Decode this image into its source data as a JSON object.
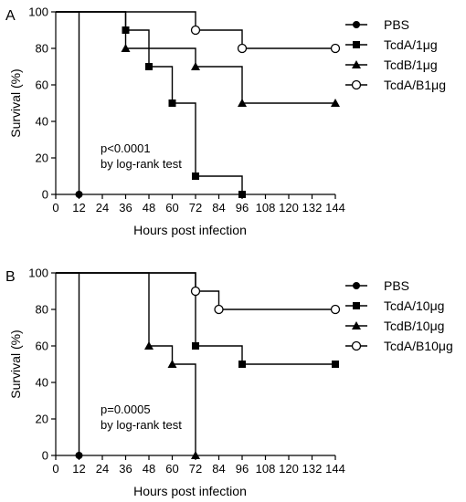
{
  "chart_data": [
    {
      "panel": "A",
      "type": "line",
      "step": true,
      "xlabel": "Hours post infection",
      "ylabel": "Survival (%)",
      "xlim": [
        0,
        144
      ],
      "ylim": [
        0,
        100
      ],
      "xticks": [
        "0",
        "12",
        "24",
        "36",
        "48",
        "60",
        "72",
        "84",
        "96",
        "108",
        "120",
        "132",
        "144"
      ],
      "yticks": [
        "0",
        "20",
        "40",
        "60",
        "80",
        "100"
      ],
      "legend_position": "right",
      "annotation": [
        "p<0.0001",
        "by log-rank test"
      ],
      "series": [
        {
          "name": "PBS",
          "marker": "circle-filled",
          "points": [
            [
              0,
              100
            ],
            [
              12,
              0
            ]
          ],
          "markers": [
            [
              12,
              0
            ]
          ]
        },
        {
          "name": "TcdA/1μg",
          "marker": "square-filled",
          "points": [
            [
              0,
              100
            ],
            [
              36,
              90
            ],
            [
              48,
              70
            ],
            [
              60,
              50
            ],
            [
              72,
              10
            ],
            [
              96,
              0
            ]
          ],
          "markers": [
            [
              36,
              90
            ],
            [
              48,
              70
            ],
            [
              60,
              50
            ],
            [
              72,
              10
            ],
            [
              96,
              0
            ]
          ]
        },
        {
          "name": "TcdB/1μg",
          "marker": "triangle-filled",
          "points": [
            [
              0,
              100
            ],
            [
              36,
              80
            ],
            [
              72,
              70
            ],
            [
              96,
              50
            ],
            [
              144,
              50
            ]
          ],
          "markers": [
            [
              36,
              80
            ],
            [
              72,
              70
            ],
            [
              96,
              50
            ],
            [
              144,
              50
            ]
          ]
        },
        {
          "name": "TcdA/B1μg",
          "marker": "circle-open",
          "points": [
            [
              0,
              100
            ],
            [
              72,
              90
            ],
            [
              96,
              80
            ],
            [
              144,
              80
            ]
          ],
          "markers": [
            [
              72,
              90
            ],
            [
              96,
              80
            ],
            [
              144,
              80
            ]
          ]
        }
      ]
    },
    {
      "panel": "B",
      "type": "line",
      "step": true,
      "xlabel": "Hours post infection",
      "ylabel": "Survival (%)",
      "xlim": [
        0,
        144
      ],
      "ylim": [
        0,
        100
      ],
      "xticks": [
        "0",
        "12",
        "24",
        "36",
        "48",
        "60",
        "72",
        "84",
        "96",
        "108",
        "120",
        "132",
        "144"
      ],
      "yticks": [
        "0",
        "20",
        "40",
        "60",
        "80",
        "100"
      ],
      "legend_position": "right",
      "annotation": [
        "p=0.0005",
        "by log-rank test"
      ],
      "series": [
        {
          "name": "PBS",
          "marker": "circle-filled",
          "points": [
            [
              0,
              100
            ],
            [
              12,
              0
            ]
          ],
          "markers": [
            [
              12,
              0
            ]
          ]
        },
        {
          "name": "TcdA/10μg",
          "marker": "square-filled",
          "points": [
            [
              0,
              100
            ],
            [
              72,
              60
            ],
            [
              96,
              50
            ],
            [
              144,
              50
            ]
          ],
          "markers": [
            [
              72,
              60
            ],
            [
              96,
              50
            ],
            [
              144,
              50
            ]
          ]
        },
        {
          "name": "TcdB/10μg",
          "marker": "triangle-filled",
          "points": [
            [
              0,
              100
            ],
            [
              48,
              60
            ],
            [
              60,
              50
            ],
            [
              72,
              0
            ]
          ],
          "markers": [
            [
              48,
              60
            ],
            [
              60,
              50
            ],
            [
              72,
              0
            ]
          ]
        },
        {
          "name": "TcdA/B10μg",
          "marker": "circle-open",
          "points": [
            [
              0,
              100
            ],
            [
              72,
              90
            ],
            [
              84,
              80
            ],
            [
              144,
              80
            ]
          ],
          "markers": [
            [
              72,
              90
            ],
            [
              84,
              80
            ],
            [
              144,
              80
            ]
          ]
        }
      ]
    }
  ]
}
